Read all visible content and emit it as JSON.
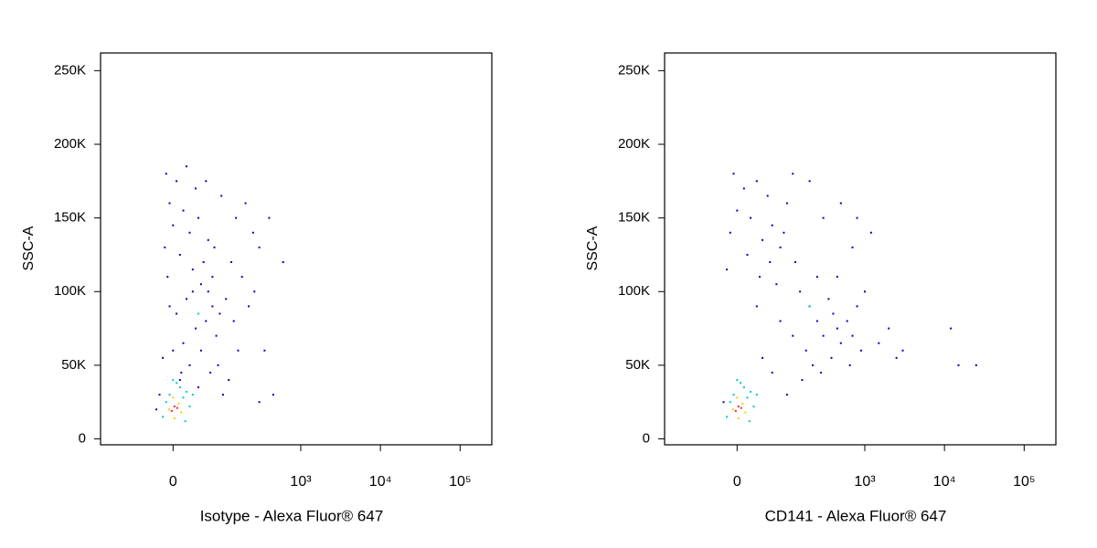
{
  "chart_data": [
    {
      "type": "scatter",
      "x_label": "Isotype - Alexa Fluor® 647",
      "y_label": "SSC-A",
      "xscale": "biexponential",
      "xlim": [
        -200,
        250000
      ],
      "ylim": [
        -4000,
        262000
      ],
      "xticks": [
        0,
        {
          "value": 1000,
          "label": "10³"
        },
        {
          "value": 10000,
          "label": "10⁴"
        },
        {
          "value": 100000,
          "label": "10⁵"
        }
      ],
      "yticks": [
        0,
        {
          "value": 50000,
          "label": "50K"
        },
        {
          "value": 100000,
          "label": "100K"
        },
        {
          "value": 150000,
          "label": "150K"
        },
        {
          "value": 200000,
          "label": "200K"
        },
        {
          "value": 250000,
          "label": "250K"
        }
      ],
      "series": [
        {
          "color": "#0000c8",
          "x": [
            -10,
            5,
            20,
            35,
            -5,
            15,
            40,
            0,
            25,
            -12,
            10,
            50,
            30,
            -8,
            45,
            60,
            20,
            70,
            5,
            55,
            35,
            80,
            15,
            45,
            -15,
            25,
            65,
            10,
            40,
            -20,
            90,
            110,
            130,
            150,
            200,
            250,
            180,
            220,
            160,
            120,
            300,
            260,
            400,
            600,
            350,
            300,
            450,
            95,
            75,
            55,
            -25,
            100,
            85,
            30,
            60,
            -5,
            0,
            70,
            12,
            140
          ],
          "y": [
            180000,
            175000,
            185000,
            170000,
            160000,
            155000,
            150000,
            145000,
            140000,
            130000,
            125000,
            120000,
            115000,
            110000,
            105000,
            100000,
            95000,
            90000,
            85000,
            80000,
            75000,
            70000,
            65000,
            60000,
            55000,
            50000,
            45000,
            40000,
            35000,
            30000,
            85000,
            95000,
            120000,
            150000,
            160000,
            140000,
            110000,
            90000,
            60000,
            40000,
            130000,
            100000,
            150000,
            120000,
            60000,
            25000,
            30000,
            165000,
            130000,
            175000,
            20000,
            30000,
            50000,
            100000,
            135000,
            90000,
            60000,
            110000,
            45000,
            80000
          ]
        },
        {
          "color": "#00c8c8",
          "x": [
            0,
            10,
            -5,
            15,
            5,
            20,
            -10,
            25,
            -15,
            18,
            30,
            40
          ],
          "y": [
            40000,
            35000,
            30000,
            28000,
            38000,
            32000,
            25000,
            22000,
            15000,
            12000,
            30000,
            85000
          ]
        },
        {
          "color": "#f0d000",
          "x": [
            0,
            8,
            -6,
            12,
            2
          ],
          "y": [
            28000,
            24000,
            20000,
            18000,
            14000
          ]
        },
        {
          "color": "#ff2020",
          "x": [
            2,
            -2,
            6
          ],
          "y": [
            22000,
            19000,
            21000
          ]
        }
      ]
    },
    {
      "type": "scatter",
      "x_label": "CD141 - Alexa Fluor® 647",
      "y_label": "SSC-A",
      "xscale": "biexponential",
      "xlim": [
        -200,
        250000
      ],
      "ylim": [
        -4000,
        262000
      ],
      "xticks": [
        0,
        {
          "value": 1000,
          "label": "10³"
        },
        {
          "value": 10000,
          "label": "10⁴"
        },
        {
          "value": 100000,
          "label": "10⁵"
        }
      ],
      "yticks": [
        0,
        {
          "value": 50000,
          "label": "50K"
        },
        {
          "value": 100000,
          "label": "100K"
        },
        {
          "value": 150000,
          "label": "150K"
        },
        {
          "value": 200000,
          "label": "200K"
        },
        {
          "value": 250000,
          "label": "250K"
        }
      ],
      "series": [
        {
          "color": "#0000c8",
          "x": [
            -5,
            10,
            30,
            50,
            0,
            20,
            60,
            -10,
            40,
            80,
            15,
            55,
            100,
            -15,
            35,
            90,
            70,
            120,
            200,
            300,
            500,
            800,
            1200,
            150,
            200,
            250,
            300,
            180,
            400,
            350,
            450,
            500,
            600,
            700,
            800,
            900,
            120,
            220,
            280,
            160,
            380,
            650,
            1500,
            2500,
            3000,
            12000,
            15000,
            25000,
            100,
            60,
            30,
            80,
            130,
            450,
            1000,
            2000,
            250,
            700,
            40,
            -20
          ],
          "y": [
            180000,
            170000,
            175000,
            165000,
            155000,
            150000,
            145000,
            140000,
            135000,
            130000,
            125000,
            120000,
            160000,
            115000,
            110000,
            140000,
            105000,
            180000,
            175000,
            150000,
            160000,
            150000,
            140000,
            100000,
            90000,
            80000,
            70000,
            60000,
            85000,
            95000,
            75000,
            65000,
            80000,
            70000,
            90000,
            60000,
            70000,
            50000,
            45000,
            40000,
            55000,
            50000,
            65000,
            55000,
            60000,
            75000,
            50000,
            50000,
            30000,
            45000,
            90000,
            80000,
            120000,
            110000,
            100000,
            75000,
            110000,
            130000,
            55000,
            25000
          ]
        },
        {
          "color": "#00c8c8",
          "x": [
            0,
            10,
            -5,
            15,
            5,
            20,
            -10,
            25,
            -15,
            18,
            30,
            200
          ],
          "y": [
            40000,
            35000,
            30000,
            28000,
            38000,
            32000,
            25000,
            22000,
            15000,
            12000,
            30000,
            90000
          ]
        },
        {
          "color": "#f0d000",
          "x": [
            0,
            8,
            -6,
            12,
            2
          ],
          "y": [
            28000,
            24000,
            20000,
            18000,
            14000
          ]
        },
        {
          "color": "#ff2020",
          "x": [
            2,
            -2,
            6
          ],
          "y": [
            22000,
            19000,
            21000
          ]
        }
      ]
    }
  ]
}
